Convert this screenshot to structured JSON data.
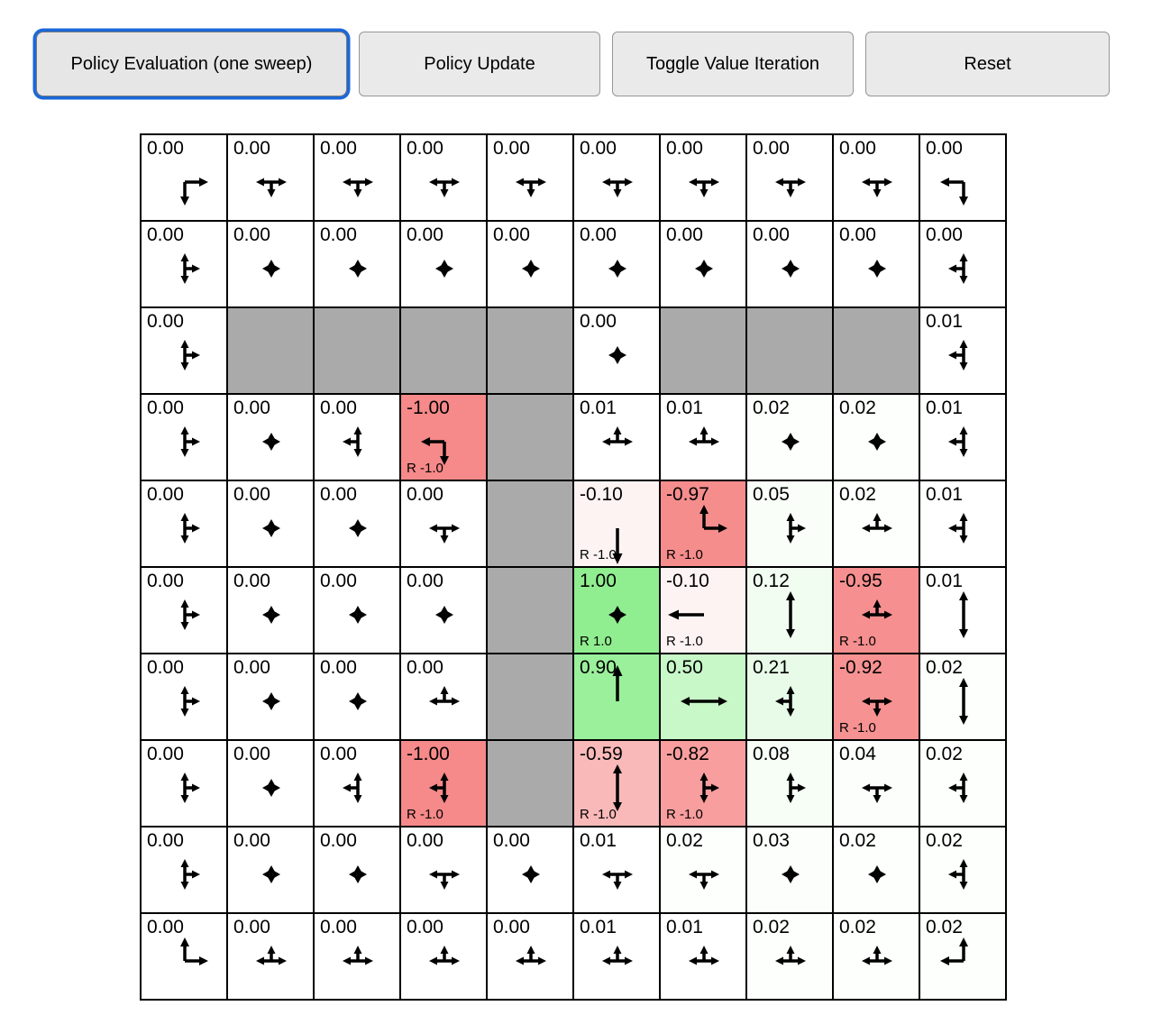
{
  "toolbar": {
    "buttons": [
      {
        "label": "Policy Evaluation (one sweep)",
        "active": true
      },
      {
        "label": "Policy Update",
        "active": false
      },
      {
        "label": "Toggle Value Iteration",
        "active": false
      },
      {
        "label": "Reset",
        "active": false
      }
    ]
  },
  "colors": {
    "wall": "#aaaaaa",
    "positive_max": "#90ee90",
    "negative_max": "#f68989",
    "zero": "#ffffff",
    "arrow": "#000000",
    "grid_border": "#000000",
    "button_bg": "#eaeaea",
    "button_border": "#969696",
    "active_button_ring": "#1b68d9"
  },
  "grid": {
    "rows": 10,
    "cols": 10,
    "cells": [
      [
        {
          "v": "0.00",
          "a": "RD"
        },
        {
          "v": "0.00",
          "a": "LRD"
        },
        {
          "v": "0.00",
          "a": "LRD"
        },
        {
          "v": "0.00",
          "a": "LRD"
        },
        {
          "v": "0.00",
          "a": "LRD"
        },
        {
          "v": "0.00",
          "a": "LRD"
        },
        {
          "v": "0.00",
          "a": "LRD"
        },
        {
          "v": "0.00",
          "a": "LRD"
        },
        {
          "v": "0.00",
          "a": "LRD"
        },
        {
          "v": "0.00",
          "a": "LD"
        }
      ],
      [
        {
          "v": "0.00",
          "a": "UDR"
        },
        {
          "v": "0.00",
          "a": "UDLR"
        },
        {
          "v": "0.00",
          "a": "UDLR"
        },
        {
          "v": "0.00",
          "a": "UDLR"
        },
        {
          "v": "0.00",
          "a": "UDLR"
        },
        {
          "v": "0.00",
          "a": "UDLR"
        },
        {
          "v": "0.00",
          "a": "UDLR"
        },
        {
          "v": "0.00",
          "a": "UDLR"
        },
        {
          "v": "0.00",
          "a": "UDLR"
        },
        {
          "v": "0.00",
          "a": "UDL"
        }
      ],
      [
        {
          "v": "0.00",
          "a": "UDR"
        },
        {
          "wall": true
        },
        {
          "wall": true
        },
        {
          "wall": true
        },
        {
          "wall": true
        },
        {
          "v": "0.00",
          "a": "UDLR"
        },
        {
          "wall": true
        },
        {
          "wall": true
        },
        {
          "wall": true
        },
        {
          "v": "0.01",
          "a": "UDL"
        }
      ],
      [
        {
          "v": "0.00",
          "a": "UDR"
        },
        {
          "v": "0.00",
          "a": "UDLR"
        },
        {
          "v": "0.00",
          "a": "UDL"
        },
        {
          "v": "-1.00",
          "a": "LD",
          "r": "R -1.0"
        },
        {
          "wall": true
        },
        {
          "v": "0.01",
          "a": "LRU"
        },
        {
          "v": "0.01",
          "a": "LRU"
        },
        {
          "v": "0.02",
          "a": "UDLR"
        },
        {
          "v": "0.02",
          "a": "UDLR"
        },
        {
          "v": "0.01",
          "a": "UDL"
        }
      ],
      [
        {
          "v": "0.00",
          "a": "UDR"
        },
        {
          "v": "0.00",
          "a": "UDLR"
        },
        {
          "v": "0.00",
          "a": "UDLR"
        },
        {
          "v": "0.00",
          "a": "LRD"
        },
        {
          "wall": true
        },
        {
          "v": "-0.10",
          "a": "D",
          "r": "R -1.0"
        },
        {
          "v": "-0.97",
          "a": "UR",
          "r": "R -1.0"
        },
        {
          "v": "0.05",
          "a": "UDR"
        },
        {
          "v": "0.02",
          "a": "LRU"
        },
        {
          "v": "0.01",
          "a": "UDL"
        }
      ],
      [
        {
          "v": "0.00",
          "a": "UDR"
        },
        {
          "v": "0.00",
          "a": "UDLR"
        },
        {
          "v": "0.00",
          "a": "UDLR"
        },
        {
          "v": "0.00",
          "a": "UDLR"
        },
        {
          "wall": true
        },
        {
          "v": "1.00",
          "a": "UDLR",
          "r": "R 1.0"
        },
        {
          "v": "-0.10",
          "a": "L",
          "r": "R -1.0"
        },
        {
          "v": "0.12",
          "a": "UD"
        },
        {
          "v": "-0.95",
          "a": "LRU",
          "r": "R -1.0"
        },
        {
          "v": "0.01",
          "a": "UD"
        }
      ],
      [
        {
          "v": "0.00",
          "a": "UDR"
        },
        {
          "v": "0.00",
          "a": "UDLR"
        },
        {
          "v": "0.00",
          "a": "UDLR"
        },
        {
          "v": "0.00",
          "a": "LRU"
        },
        {
          "wall": true
        },
        {
          "v": "0.90",
          "a": "U"
        },
        {
          "v": "0.50",
          "a": "LR"
        },
        {
          "v": "0.21",
          "a": "UDL"
        },
        {
          "v": "-0.92",
          "a": "LRD",
          "r": "R -1.0"
        },
        {
          "v": "0.02",
          "a": "UD"
        }
      ],
      [
        {
          "v": "0.00",
          "a": "UDR"
        },
        {
          "v": "0.00",
          "a": "UDLR"
        },
        {
          "v": "0.00",
          "a": "UDL"
        },
        {
          "v": "-1.00",
          "a": "UDL",
          "r": "R -1.0"
        },
        {
          "wall": true
        },
        {
          "v": "-0.59",
          "a": "UD",
          "r": "R -1.0"
        },
        {
          "v": "-0.82",
          "a": "UDR",
          "r": "R -1.0"
        },
        {
          "v": "0.08",
          "a": "UDR"
        },
        {
          "v": "0.04",
          "a": "LRD"
        },
        {
          "v": "0.02",
          "a": "UDL"
        }
      ],
      [
        {
          "v": "0.00",
          "a": "UDR"
        },
        {
          "v": "0.00",
          "a": "UDLR"
        },
        {
          "v": "0.00",
          "a": "UDLR"
        },
        {
          "v": "0.00",
          "a": "LRD"
        },
        {
          "v": "0.00",
          "a": "UDLR"
        },
        {
          "v": "0.01",
          "a": "LRD"
        },
        {
          "v": "0.02",
          "a": "LRD"
        },
        {
          "v": "0.03",
          "a": "UDLR"
        },
        {
          "v": "0.02",
          "a": "UDLR"
        },
        {
          "v": "0.02",
          "a": "UDL"
        }
      ],
      [
        {
          "v": "0.00",
          "a": "UR"
        },
        {
          "v": "0.00",
          "a": "LRU"
        },
        {
          "v": "0.00",
          "a": "LRU"
        },
        {
          "v": "0.00",
          "a": "LRU"
        },
        {
          "v": "0.00",
          "a": "LRU"
        },
        {
          "v": "0.01",
          "a": "LRU"
        },
        {
          "v": "0.01",
          "a": "LRU"
        },
        {
          "v": "0.02",
          "a": "LRU"
        },
        {
          "v": "0.02",
          "a": "LRU"
        },
        {
          "v": "0.02",
          "a": "UL"
        }
      ]
    ]
  }
}
